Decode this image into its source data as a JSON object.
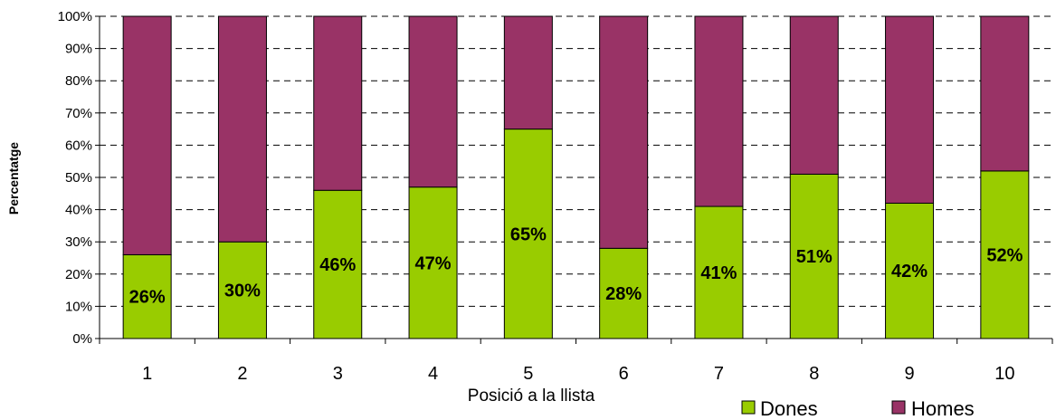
{
  "colors": {
    "dones": "#99cc00",
    "homes": "#993366",
    "gridline": "#000000",
    "border": "#000000"
  },
  "chart_data": {
    "type": "bar",
    "stacked": true,
    "percent_stacked": true,
    "title": "",
    "xlabel": "Posició a la llista",
    "ylabel": "Percentatge",
    "ylim": [
      0,
      100
    ],
    "yticks": [
      "0%",
      "10%",
      "20%",
      "30%",
      "40%",
      "50%",
      "60%",
      "70%",
      "80%",
      "90%",
      "100%"
    ],
    "grid": "horizontal dashed",
    "legend_position": "bottom-right",
    "categories": [
      "1",
      "2",
      "3",
      "4",
      "5",
      "6",
      "7",
      "8",
      "9",
      "10"
    ],
    "series": [
      {
        "name": "Dones",
        "values": [
          26,
          30,
          46,
          47,
          65,
          28,
          41,
          51,
          42,
          52
        ],
        "labels": [
          "26%",
          "30%",
          "46%",
          "47%",
          "65%",
          "28%",
          "41%",
          "51%",
          "42%",
          "52%"
        ]
      },
      {
        "name": "Homes",
        "values": [
          74,
          70,
          54,
          53,
          35,
          72,
          59,
          49,
          58,
          48
        ]
      }
    ]
  }
}
